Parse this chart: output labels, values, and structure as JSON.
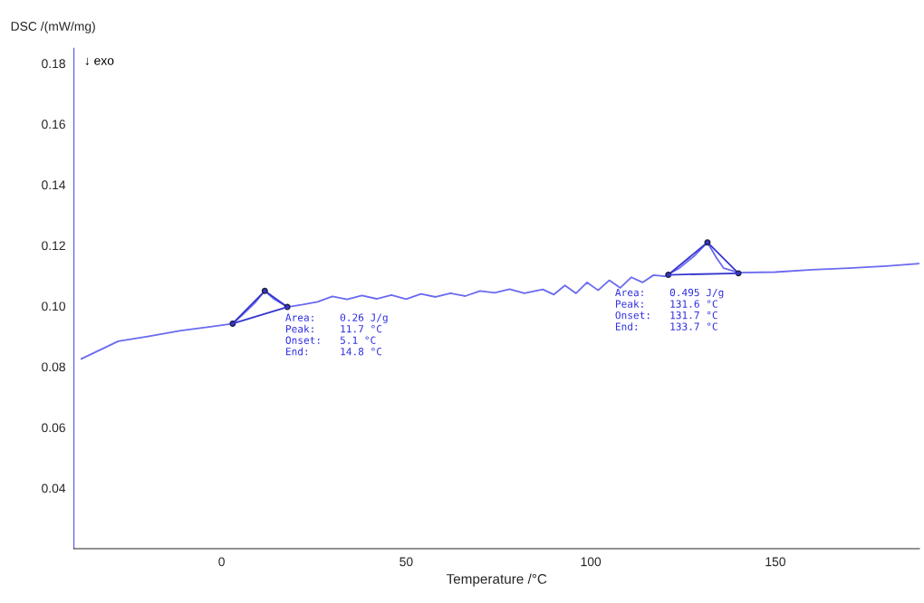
{
  "chart_data": {
    "type": "line",
    "xlabel": "Temperature /°C",
    "ylabel": "DSC /(mW/mg)",
    "xlim": [
      -40,
      189
    ],
    "ylim": [
      0.02,
      0.185
    ],
    "xticks": [
      0,
      50,
      100,
      150
    ],
    "yticks": [
      {
        "value": 0.04,
        "label": "0.04"
      },
      {
        "value": 0.06,
        "label": "0.06"
      },
      {
        "value": 0.08,
        "label": "0.08"
      },
      {
        "value": 0.1,
        "label": "0.10"
      },
      {
        "value": 0.12,
        "label": "0.12"
      },
      {
        "value": 0.14,
        "label": "0.14"
      },
      {
        "value": 0.16,
        "label": "0.16"
      },
      {
        "value": 0.18,
        "label": "0.18"
      }
    ],
    "grid": false,
    "line_style": "solid",
    "series": [
      {
        "color": "#6a6af0",
        "marker": "none",
        "x": [
          -38,
          -28,
          -20,
          -11,
          -3,
          3,
          6,
          9,
          11.7,
          14,
          17.8,
          22,
          26,
          30,
          34,
          38,
          42,
          46,
          50,
          54,
          58,
          62,
          66,
          70,
          74,
          78,
          82,
          87,
          90,
          93,
          96,
          99,
          102,
          105,
          108,
          111,
          114,
          117,
          120,
          124,
          128,
          131.6,
          134,
          136,
          140,
          150,
          160,
          170,
          180,
          189
        ],
        "values": [
          0.0826,
          0.0884,
          0.09,
          0.0919,
          0.0932,
          0.0942,
          0.0975,
          0.101,
          0.105,
          0.1025,
          0.0997,
          0.1005,
          0.1014,
          0.1032,
          0.1022,
          0.1035,
          0.1024,
          0.1036,
          0.1023,
          0.104,
          0.103,
          0.1042,
          0.1033,
          0.105,
          0.1044,
          0.1056,
          0.1042,
          0.1055,
          0.1038,
          0.1068,
          0.1042,
          0.1078,
          0.1052,
          0.1085,
          0.106,
          0.1095,
          0.1078,
          0.1102,
          0.1098,
          0.1125,
          0.1165,
          0.121,
          0.116,
          0.1125,
          0.111,
          0.1112,
          0.112,
          0.1125,
          0.1132,
          0.114
        ]
      },
      {
        "color": "#3535d0",
        "marker": "circle",
        "x": [
          3,
          11.7,
          17.8
        ],
        "values": [
          0.0942,
          0.105,
          0.0997
        ]
      },
      {
        "color": "#3535d0",
        "marker": "none",
        "x": [
          3,
          17.8
        ],
        "values": [
          0.0942,
          0.0997
        ]
      },
      {
        "color": "#3535d0",
        "marker": "circle",
        "x": [
          121,
          131.6,
          140
        ],
        "values": [
          0.1103,
          0.121,
          0.1108
        ]
      },
      {
        "color": "#3535d0",
        "marker": "none",
        "x": [
          121,
          140
        ],
        "values": [
          0.1103,
          0.1108
        ]
      }
    ],
    "annotations": [
      "↓ exo",
      "Area:    0.26 J/g\nPeak:    11.7 °C\nOnset:   5.1 °C\nEnd:     14.8 °C",
      "Area:    0.495 J/g\nPeak:    131.6 °C\nOnset:   131.7 °C\nEnd:     133.7 °C"
    ]
  }
}
